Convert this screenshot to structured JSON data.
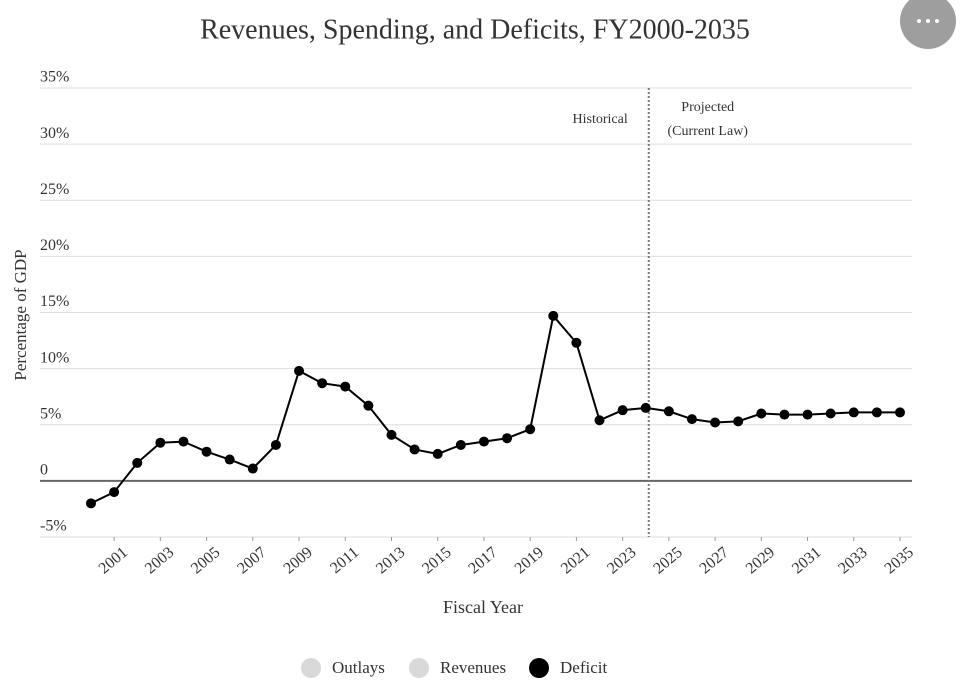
{
  "chart_data": {
    "type": "line",
    "title": "Revenues, Spending, and Deficits, FY2000-2035",
    "x_label": "Fiscal Year",
    "y_label": "Percentage of GDP",
    "x": [
      2000,
      2001,
      2002,
      2003,
      2004,
      2005,
      2006,
      2007,
      2008,
      2009,
      2010,
      2011,
      2012,
      2013,
      2014,
      2015,
      2016,
      2017,
      2018,
      2019,
      2020,
      2021,
      2022,
      2023,
      2024,
      2025,
      2026,
      2027,
      2028,
      2029,
      2030,
      2031,
      2032,
      2033,
      2034,
      2035
    ],
    "series": [
      {
        "name": "Deficit",
        "color": "#000000",
        "values": [
          -2.0,
          -1.0,
          1.6,
          3.4,
          3.5,
          2.6,
          1.9,
          1.1,
          3.2,
          9.8,
          8.7,
          8.4,
          6.7,
          4.1,
          2.8,
          2.4,
          3.2,
          3.5,
          3.8,
          4.6,
          14.7,
          12.3,
          5.4,
          6.3,
          6.5,
          6.2,
          5.5,
          5.2,
          5.3,
          6.0,
          5.9,
          5.9,
          6.0,
          6.1,
          6.1,
          6.1
        ]
      }
    ],
    "legend": [
      {
        "name": "Outlays",
        "color": "#d9d9d9"
      },
      {
        "name": "Revenues",
        "color": "#d9d9d9"
      },
      {
        "name": "Deficit",
        "color": "#000000"
      }
    ],
    "xlim": [
      2000,
      2035
    ],
    "xticks": [
      2001,
      2003,
      2005,
      2007,
      2009,
      2011,
      2013,
      2015,
      2017,
      2019,
      2021,
      2023,
      2025,
      2027,
      2029,
      2031,
      2033,
      2035
    ],
    "ylim": [
      -5,
      35
    ],
    "yticks": [
      {
        "value": -5,
        "label": "-5%"
      },
      0,
      {
        "value": 5,
        "label": "5%"
      },
      {
        "value": 10,
        "label": "10%"
      },
      {
        "value": 15,
        "label": "15%"
      },
      {
        "value": 20,
        "label": "20%"
      },
      {
        "value": 25,
        "label": "25%"
      },
      {
        "value": 30,
        "label": "30%"
      },
      {
        "value": 35,
        "label": "35%"
      }
    ],
    "grid": true,
    "divider": {
      "x": 2024,
      "left_label": "Historical",
      "right_label": [
        "Projected",
        "(Current Law)"
      ]
    }
  }
}
